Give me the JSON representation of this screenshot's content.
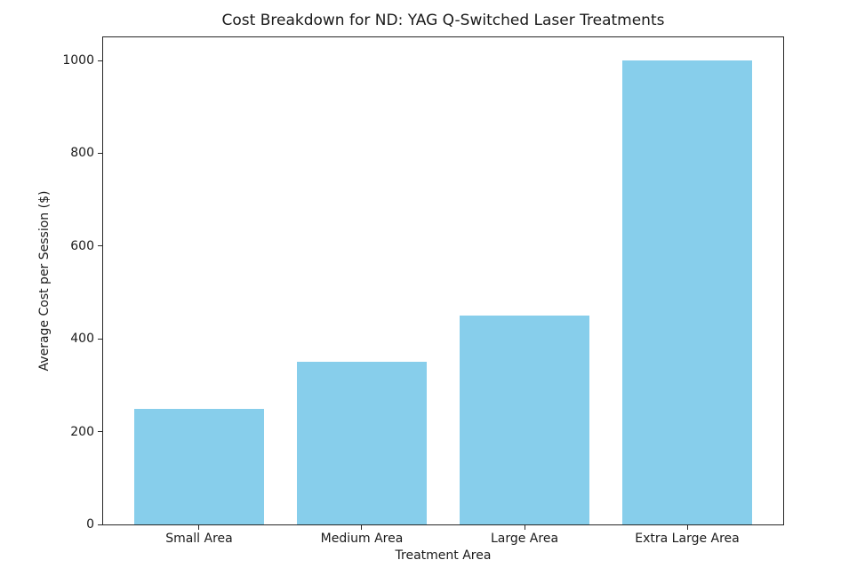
{
  "chart_data": {
    "type": "bar",
    "title": "Cost Breakdown for ND: YAG Q-Switched Laser Treatments",
    "xlabel": "Treatment Area",
    "ylabel": "Average Cost per Session ($)",
    "categories": [
      "Small Area",
      "Medium Area",
      "Large Area",
      "Extra Large Area"
    ],
    "values": [
      250,
      350,
      450,
      1000
    ],
    "ylim": [
      0,
      1050
    ],
    "yticks": [
      0,
      200,
      400,
      600,
      800,
      1000
    ],
    "bar_color": "#87CEEB",
    "axis_color": "#262626",
    "text_color": "#1a1a1a",
    "background": "#ffffff",
    "grid": false,
    "legend": null
  }
}
